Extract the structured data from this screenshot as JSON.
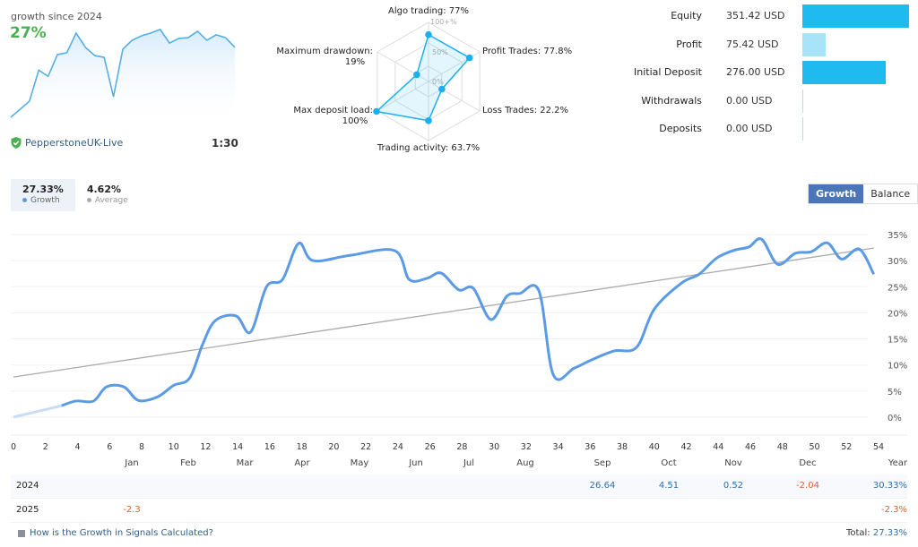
{
  "mini": {
    "title": "growth since 2024",
    "growth": "27%",
    "sparkline_values": [
      0,
      3.1,
      6.3,
      18.4,
      16,
      24.5,
      25.2,
      32.9,
      27.3,
      24.1,
      23.4,
      8,
      26.6,
      30.1,
      31.8,
      32.9,
      34.3,
      29,
      30.8,
      31.1,
      33.6,
      30.1,
      32.2,
      31.1,
      27.3
    ],
    "broker": "PepperstoneUK-Live",
    "leverage": "1:30"
  },
  "radar": {
    "axes": [
      {
        "label": "Algo trading: 77%",
        "value": 77
      },
      {
        "label": "Profit Trades: 77.8%",
        "value": 77.8
      },
      {
        "label": "Loss Trades: 22.2%",
        "value": 22.2
      },
      {
        "label": "Trading activity: 63.7%",
        "value": 63.7
      },
      {
        "label": "Max deposit load: 100%",
        "value": 100
      },
      {
        "label": "Maximum drawdown: 19%",
        "value": 19
      }
    ],
    "ring_labels": [
      "0%",
      "50%",
      "100+%"
    ],
    "color": "#1ab0f0"
  },
  "stats": [
    {
      "label": "Equity",
      "value": "351.42 USD",
      "amount": 351.42,
      "color": "#1fbaf0"
    },
    {
      "label": "Profit",
      "value": "75.42 USD",
      "amount": 75.42,
      "color": "#a9e3f9"
    },
    {
      "label": "Initial Deposit",
      "value": "276.00 USD",
      "amount": 276.0,
      "color": "#1fbaf0"
    },
    {
      "label": "Withdrawals",
      "value": "0.00 USD",
      "amount": 0,
      "color": "#a9e3f9"
    },
    {
      "label": "Deposits",
      "value": "0.00 USD",
      "amount": 0,
      "color": "#a9e3f9"
    }
  ],
  "tabs": [
    {
      "value": "27.33%",
      "label": "Growth",
      "color": "#5b9be6"
    },
    {
      "value": "4.62%",
      "label": "Average",
      "color": "#aaaaaa"
    }
  ],
  "switch": {
    "growth": "Growth",
    "balance": "Balance"
  },
  "chart_data": {
    "type": "line",
    "xlim": [
      0,
      54
    ],
    "ylim": [
      0,
      35
    ],
    "x_ticks": [
      0,
      2,
      4,
      6,
      8,
      10,
      12,
      14,
      16,
      18,
      20,
      22,
      24,
      26,
      28,
      30,
      32,
      34,
      36,
      38,
      40,
      42,
      44,
      46,
      48,
      50,
      52,
      54
    ],
    "y_ticks": [
      "0%",
      "5%",
      "10%",
      "15%",
      "20%",
      "25%",
      "30%",
      "35%"
    ],
    "grid": true,
    "series": [
      {
        "name": "Growth",
        "color": "#5b9be6",
        "x": [
          0,
          3,
          3.9,
          5,
          5.8,
          6.9,
          7.8,
          9,
          10,
          11,
          11.8,
          12.6,
          13.9,
          14.8,
          15.8,
          16.8,
          17.8,
          18.7,
          21,
          23.8,
          24.7,
          25.8,
          26.7,
          27.8,
          28.7,
          29.8,
          30.8,
          31.6,
          32.8,
          33.7,
          35,
          36.1,
          37.5,
          38.9,
          40,
          41.7,
          42.8,
          43.9,
          45,
          45.9,
          46.7,
          47.7,
          48.8,
          49.8,
          50.8,
          51.7,
          52.8,
          53.7
        ],
        "y": [
          0,
          2.2,
          3.1,
          3.1,
          5.8,
          5.8,
          3.2,
          3.9,
          6.1,
          7.5,
          13.9,
          18.5,
          19.4,
          16.3,
          25,
          26.4,
          33.3,
          30,
          31,
          31.9,
          26.4,
          26.6,
          27.6,
          24.4,
          24.7,
          18.7,
          23.2,
          23.7,
          24.2,
          8.1,
          9.4,
          11,
          12.7,
          13.4,
          20.7,
          25.7,
          27.4,
          30.5,
          32,
          32.6,
          34.1,
          29.3,
          31.4,
          31.7,
          33.4,
          30.3,
          32.2,
          27.4
        ]
      },
      {
        "name": "Average",
        "color": "#aaaaaa",
        "x": [
          0,
          53.7
        ],
        "y": [
          7.7,
          32.4
        ]
      }
    ]
  },
  "table": {
    "months": [
      "Jan",
      "Feb",
      "Mar",
      "Apr",
      "May",
      "Jun",
      "Jul",
      "Aug",
      "Sep",
      "Oct",
      "Nov",
      "Dec"
    ],
    "year_label": "Year",
    "rows": [
      {
        "year": "2024",
        "values": [
          "",
          "",
          "",
          "",
          "",
          "",
          "",
          "",
          "26.64",
          "4.51",
          "0.52",
          "-2.04"
        ],
        "total": "30.33%"
      },
      {
        "year": "2025",
        "values": [
          "-2.3",
          "",
          "",
          "",
          "",
          "",
          "",
          "",
          "",
          "",
          "",
          ""
        ],
        "total": "-2.3%"
      }
    ]
  },
  "footer": {
    "link": "How is the Growth in Signals Calculated?",
    "total_label": "Total:",
    "total_value": "27.33%"
  }
}
